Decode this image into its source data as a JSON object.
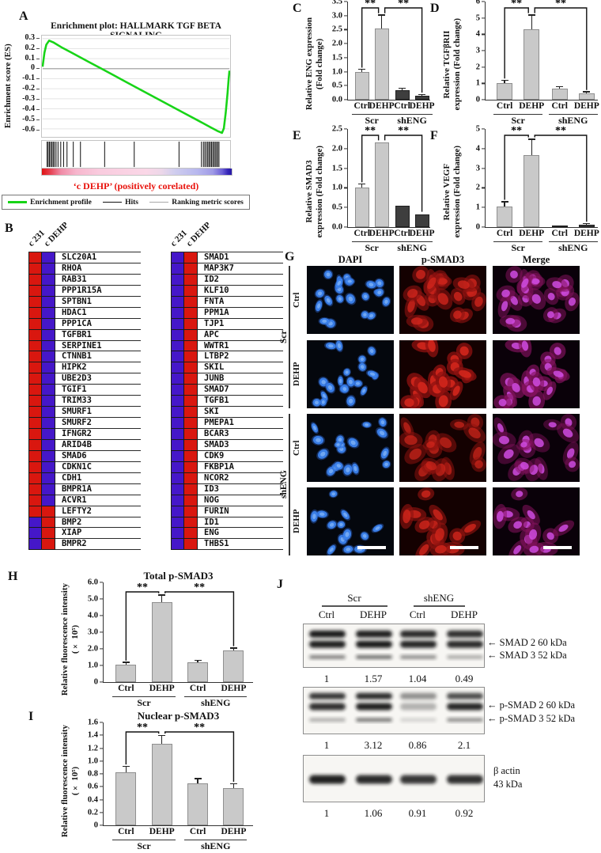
{
  "colors": {
    "bar_light": "#c9c9c9",
    "bar_light_border": "#8f8f8f",
    "bar_dark": "#3e3e3e",
    "bar_dark_border": "#1f1f1f",
    "heat_red": "#d9170f",
    "heat_blue": "#4517c9",
    "caption_red": "#e8120c",
    "curve_green": "#17d417"
  },
  "chart_data": [
    {
      "id": "A",
      "panel": "A",
      "type": "line",
      "title": "Enrichment plot: HALLMARK TGF BETA SIGNALING",
      "ylabel": "Enrichment score (ES)",
      "yticks": [
        0.3,
        0.2,
        0.1,
        0,
        -0.1,
        -0.2,
        -0.3,
        -0.4,
        -0.5,
        -0.6
      ],
      "ylim": [
        -0.68,
        0.33
      ],
      "curve": [
        [
          0,
          0.02
        ],
        [
          1,
          0.16
        ],
        [
          2,
          0.24
        ],
        [
          3.5,
          0.28
        ],
        [
          6,
          0.26
        ],
        [
          10,
          0.215
        ],
        [
          15,
          0.165
        ],
        [
          20,
          0.115
        ],
        [
          25,
          0.065
        ],
        [
          31,
          0.005
        ],
        [
          38,
          -0.065
        ],
        [
          45,
          -0.135
        ],
        [
          52,
          -0.205
        ],
        [
          60,
          -0.285
        ],
        [
          68,
          -0.365
        ],
        [
          76,
          -0.445
        ],
        [
          84,
          -0.525
        ],
        [
          90,
          -0.585
        ],
        [
          93.5,
          -0.62
        ],
        [
          96,
          -0.64
        ],
        [
          97,
          -0.595
        ],
        [
          98,
          -0.44
        ],
        [
          99,
          -0.24
        ],
        [
          99.6,
          -0.1
        ],
        [
          100,
          -0.02
        ]
      ],
      "hits_pct": [
        0.4,
        1,
        1.7,
        2.4,
        3.1,
        3.8,
        4.5,
        5.4,
        6.5,
        8,
        9.6,
        11.5,
        15,
        19,
        32.5,
        49,
        74,
        86.5,
        87.6,
        88.4,
        89.2,
        90,
        90.7,
        91.4,
        92.1,
        92.8,
        93.5,
        94.2,
        94.9,
        95.6,
        96.3
      ],
      "colorbar_stops": [
        [
          "0%",
          "#df1212"
        ],
        [
          "5%",
          "#e7485a"
        ],
        [
          "10%",
          "#f08ba6"
        ],
        [
          "18%",
          "#f7b6cd"
        ],
        [
          "30%",
          "#f9cbde"
        ],
        [
          "55%",
          "#fad7e7"
        ],
        [
          "63%",
          "#ecd7e9"
        ],
        [
          "70%",
          "#cfcdee"
        ],
        [
          "82%",
          "#b7b7ee"
        ],
        [
          "90%",
          "#9f9ae6"
        ],
        [
          "95%",
          "#6c5fd6"
        ],
        [
          "98%",
          "#3525b8"
        ],
        [
          "100%",
          "#2718a4"
        ]
      ],
      "caption": "‘c DEHP’ (positively corelated)",
      "legend": [
        [
          "Enrichment profile",
          "#17d417"
        ],
        [
          "Hits",
          "#111111"
        ],
        [
          "Ranking metric scores",
          "#a8a8a8"
        ]
      ]
    },
    {
      "id": "C",
      "panel": "C",
      "type": "bar",
      "ylabel_lines": [
        "Relative ENG expression",
        "(Fold change)"
      ],
      "ylim": [
        0,
        3.5
      ],
      "ytick_labels": [
        "3.5",
        "3.0",
        "2.5",
        "2.0",
        "1.5",
        "1.0",
        "0.5",
        "0.0"
      ],
      "categories": [
        "Ctrl",
        "DEHP",
        "Ctrl",
        "DEHP"
      ],
      "groups": [
        "Scr",
        "shENG"
      ],
      "values": [
        1.0,
        2.55,
        0.35,
        0.15
      ],
      "errors": [
        0.06,
        0.45,
        0.04,
        0.02
      ],
      "bar_colors": [
        "light",
        "light",
        "dark",
        "dark"
      ],
      "sig": [
        {
          "from": 0,
          "to": 1,
          "label": "**"
        },
        {
          "from": 1,
          "to": 3,
          "label": "**"
        }
      ]
    },
    {
      "id": "D",
      "panel": "D",
      "type": "bar",
      "ylabel_lines": [
        "Relative TGFβRII",
        "expression (Fold change)"
      ],
      "ylim": [
        0,
        6
      ],
      "ytick_labels": [
        "6",
        "5",
        "4",
        "3",
        "2",
        "1",
        "0"
      ],
      "categories": [
        "Ctrl",
        "DEHP",
        "Ctrl",
        "DEHP"
      ],
      "groups": [
        "Scr",
        "shENG"
      ],
      "values": [
        1.0,
        4.3,
        0.7,
        0.4
      ],
      "errors": [
        0.15,
        0.85,
        0.06,
        0.05
      ],
      "bar_colors": [
        "light",
        "light",
        "light",
        "light"
      ],
      "sig": [
        {
          "from": 0,
          "to": 1,
          "label": "**"
        },
        {
          "from": 1,
          "to": 3,
          "label": "**"
        }
      ]
    },
    {
      "id": "E",
      "panel": "E",
      "type": "bar",
      "ylabel_lines": [
        "Relative SMAD3",
        "expression (Fold change)"
      ],
      "ylim": [
        0,
        2.5
      ],
      "ytick_labels": [
        "2.5",
        "2.0",
        "1.5",
        "1.0",
        "0.5",
        "0.0"
      ],
      "categories": [
        "Ctrl",
        "DEHP",
        "Ctrl",
        "DEHP"
      ],
      "groups": [
        "Scr",
        "shENG"
      ],
      "values": [
        1.0,
        2.15,
        0.55,
        0.33
      ],
      "errors": [
        0.08,
        0,
        0,
        0
      ],
      "bar_colors": [
        "light",
        "light",
        "dark",
        "dark"
      ],
      "sig": [
        {
          "from": 0,
          "to": 1,
          "label": "**"
        },
        {
          "from": 1,
          "to": 3,
          "label": "**"
        }
      ]
    },
    {
      "id": "F",
      "panel": "F",
      "type": "bar",
      "ylabel_lines": [
        "Relative VEGF",
        "expression (Fold change)"
      ],
      "ylim": [
        0,
        5
      ],
      "ytick_labels": [
        "5",
        "4",
        "3",
        "2",
        "1",
        "0"
      ],
      "categories": [
        "Ctrl",
        "DEHP",
        "Ctrl",
        "DEHP"
      ],
      "groups": [
        "Scr",
        "shENG"
      ],
      "values": [
        1.05,
        3.65,
        0.04,
        0.12
      ],
      "errors": [
        0.22,
        0.8,
        0,
        0.03
      ],
      "bar_colors": [
        "light",
        "light",
        "dark",
        "dark"
      ],
      "sig": [
        {
          "from": 0,
          "to": 1,
          "label": "**"
        },
        {
          "from": 1,
          "to": 3,
          "label": "**"
        }
      ]
    },
    {
      "id": "H",
      "panel": "H",
      "type": "bar",
      "title": "Total p-SMAD3",
      "ylabel_lines": [
        "Relative fluorescence intensity",
        "(× 10⁵)"
      ],
      "ylim": [
        0,
        6
      ],
      "ytick_labels": [
        "6.0",
        "5.0",
        "4.0",
        "3.0",
        "2.0",
        "1.0",
        "0"
      ],
      "categories": [
        "Ctrl",
        "DEHP",
        "Ctrl",
        "DEHP"
      ],
      "groups": [
        "Scr",
        "shENG"
      ],
      "values": [
        1.05,
        4.8,
        1.2,
        1.9
      ],
      "errors": [
        0.1,
        0.4,
        0.08,
        0.12
      ],
      "bar_colors": [
        "light",
        "light",
        "light",
        "light"
      ],
      "sig": [
        {
          "from": 0,
          "to": 1,
          "label": "**"
        },
        {
          "from": 1,
          "to": 3,
          "label": "**"
        }
      ]
    },
    {
      "id": "I",
      "panel": "I",
      "type": "bar",
      "title": "Nuclear p-SMAD3",
      "ylabel_lines": [
        "Relative fluorescence intensity",
        "(× 10⁵)"
      ],
      "ylim": [
        0,
        1.6
      ],
      "ytick_labels": [
        "1.6",
        "1.4",
        "1.2",
        "1.0",
        "0.8",
        "0.6",
        "0.4",
        "0.2",
        "0"
      ],
      "categories": [
        "Ctrl",
        "DEHP",
        "Ctrl",
        "DEHP"
      ],
      "groups": [
        "Scr",
        "shENG"
      ],
      "values": [
        0.82,
        1.27,
        0.65,
        0.58
      ],
      "errors": [
        0.09,
        0.12,
        0.07,
        0.06
      ],
      "bar_colors": [
        "light",
        "light",
        "light",
        "light"
      ],
      "sig": [
        {
          "from": 0,
          "to": 1,
          "label": "**"
        },
        {
          "from": 1,
          "to": 3,
          "label": "**"
        }
      ]
    }
  ],
  "panel_b": {
    "label": "B",
    "col_headers": [
      "c 231",
      "c DEHP"
    ],
    "left": [
      {
        "gene": "SLC20A1",
        "c": [
          "r",
          "b"
        ]
      },
      {
        "gene": "RHOA",
        "c": [
          "r",
          "b"
        ]
      },
      {
        "gene": "RAB31",
        "c": [
          "r",
          "b"
        ]
      },
      {
        "gene": "PPP1R15A",
        "c": [
          "r",
          "b"
        ]
      },
      {
        "gene": "SPTBN1",
        "c": [
          "r",
          "b"
        ]
      },
      {
        "gene": "HDAC1",
        "c": [
          "r",
          "b"
        ]
      },
      {
        "gene": "PPP1CA",
        "c": [
          "r",
          "b"
        ]
      },
      {
        "gene": "TGFBR1",
        "c": [
          "r",
          "b"
        ]
      },
      {
        "gene": "SERPINE1",
        "c": [
          "r",
          "b"
        ]
      },
      {
        "gene": "CTNNB1",
        "c": [
          "r",
          "b"
        ]
      },
      {
        "gene": "HIPK2",
        "c": [
          "r",
          "b"
        ]
      },
      {
        "gene": "UBE2D3",
        "c": [
          "r",
          "b"
        ]
      },
      {
        "gene": "TGIF1",
        "c": [
          "r",
          "b"
        ]
      },
      {
        "gene": "TRIM33",
        "c": [
          "r",
          "b"
        ]
      },
      {
        "gene": "SMURF1",
        "c": [
          "r",
          "b"
        ]
      },
      {
        "gene": "SMURF2",
        "c": [
          "r",
          "b"
        ]
      },
      {
        "gene": "IFNGR2",
        "c": [
          "r",
          "b"
        ]
      },
      {
        "gene": "ARID4B",
        "c": [
          "r",
          "b"
        ]
      },
      {
        "gene": "SMAD6",
        "c": [
          "r",
          "b"
        ]
      },
      {
        "gene": "CDKN1C",
        "c": [
          "r",
          "b"
        ]
      },
      {
        "gene": "CDH1",
        "c": [
          "r",
          "b"
        ]
      },
      {
        "gene": "BMPR1A",
        "c": [
          "r",
          "b"
        ]
      },
      {
        "gene": "ACVR1",
        "c": [
          "r",
          "b"
        ]
      },
      {
        "gene": "LEFTY2",
        "c": [
          "r",
          "r"
        ]
      },
      {
        "gene": "BMP2",
        "c": [
          "b",
          "r"
        ]
      },
      {
        "gene": "XIAP",
        "c": [
          "b",
          "r"
        ]
      },
      {
        "gene": "BMPR2",
        "c": [
          "b",
          "r"
        ]
      }
    ],
    "right": [
      {
        "gene": "SMAD1",
        "c": [
          "b",
          "r"
        ]
      },
      {
        "gene": "MAP3K7",
        "c": [
          "b",
          "r"
        ]
      },
      {
        "gene": "ID2",
        "c": [
          "b",
          "r"
        ]
      },
      {
        "gene": "KLF10",
        "c": [
          "b",
          "r"
        ]
      },
      {
        "gene": "FNTA",
        "c": [
          "b",
          "r"
        ]
      },
      {
        "gene": "PPM1A",
        "c": [
          "b",
          "r"
        ]
      },
      {
        "gene": "TJP1",
        "c": [
          "b",
          "r"
        ]
      },
      {
        "gene": "APC",
        "c": [
          "b",
          "r"
        ]
      },
      {
        "gene": "WWTR1",
        "c": [
          "b",
          "r"
        ]
      },
      {
        "gene": "LTBP2",
        "c": [
          "b",
          "r"
        ]
      },
      {
        "gene": "SKIL",
        "c": [
          "b",
          "r"
        ]
      },
      {
        "gene": "JUNB",
        "c": [
          "b",
          "r"
        ]
      },
      {
        "gene": "SMAD7",
        "c": [
          "b",
          "r"
        ]
      },
      {
        "gene": "TGFB1",
        "c": [
          "b",
          "r"
        ]
      },
      {
        "gene": "SKI",
        "c": [
          "b",
          "r"
        ]
      },
      {
        "gene": "PMEPA1",
        "c": [
          "b",
          "r"
        ]
      },
      {
        "gene": "BCAR3",
        "c": [
          "b",
          "r"
        ]
      },
      {
        "gene": "SMAD3",
        "c": [
          "b",
          "r"
        ]
      },
      {
        "gene": "CDK9",
        "c": [
          "b",
          "r"
        ]
      },
      {
        "gene": "FKBP1A",
        "c": [
          "b",
          "r"
        ]
      },
      {
        "gene": "NCOR2",
        "c": [
          "b",
          "r"
        ]
      },
      {
        "gene": "ID3",
        "c": [
          "b",
          "r"
        ]
      },
      {
        "gene": "NOG",
        "c": [
          "b",
          "r"
        ]
      },
      {
        "gene": "FURIN",
        "c": [
          "b",
          "r"
        ]
      },
      {
        "gene": "ID1",
        "c": [
          "b",
          "r"
        ]
      },
      {
        "gene": "ENG",
        "c": [
          "b",
          "r"
        ]
      },
      {
        "gene": "THBS1",
        "c": [
          "b",
          "r"
        ]
      }
    ]
  },
  "panel_g": {
    "label": "G",
    "col_headers": [
      "DAPI",
      "p-SMAD3",
      "Merge"
    ],
    "groups": [
      {
        "label": "Scr",
        "rows": [
          {
            "label": "Ctrl",
            "seed": 7,
            "intensity": 0.7,
            "cells": 22
          },
          {
            "label": "DEHP",
            "seed": 19,
            "intensity": 1.0,
            "cells": 20
          }
        ]
      },
      {
        "label": "shENG",
        "rows": [
          {
            "label": "Ctrl",
            "seed": 29,
            "intensity": 0.5,
            "cells": 18
          },
          {
            "label": "DEHP",
            "seed": 41,
            "intensity": 0.75,
            "cells": 13
          }
        ]
      }
    ]
  },
  "panel_j": {
    "label": "J",
    "group_headers": [
      "Scr",
      "shENG"
    ],
    "lane_labels": [
      "Ctrl",
      "DEHP",
      "Ctrl",
      "DEHP"
    ],
    "blots": [
      {
        "bands": [
          {
            "y": 0.22,
            "h": 9,
            "opacity": [
              0.97,
              0.95,
              0.9,
              0.88
            ]
          },
          {
            "y": 0.45,
            "h": 9,
            "opacity": [
              0.95,
              0.97,
              0.92,
              0.9
            ],
            "label": "SMAD 2 60 kDa"
          },
          {
            "y": 0.74,
            "h": 5,
            "opacity": [
              0.5,
              0.58,
              0.45,
              0.32
            ],
            "label": "SMAD 3 52 kDa"
          }
        ],
        "values": [
          "1",
          "1.57",
          "1.04",
          "0.49"
        ]
      },
      {
        "bands": [
          {
            "y": 0.18,
            "h": 8,
            "opacity": [
              0.85,
              0.9,
              0.45,
              0.75
            ]
          },
          {
            "y": 0.4,
            "h": 9,
            "opacity": [
              0.88,
              0.95,
              0.3,
              0.92
            ],
            "label": "p-SMAD 2 60 kDa"
          },
          {
            "y": 0.68,
            "h": 5,
            "opacity": [
              0.3,
              0.55,
              0.15,
              0.45
            ],
            "label": "p-SMAD 3 52 kDa"
          }
        ],
        "values": [
          "1",
          "3.12",
          "0.86",
          "2.1"
        ]
      },
      {
        "bands": [
          {
            "y": 0.5,
            "h": 11,
            "opacity": [
              0.95,
              0.9,
              0.85,
              0.88
            ]
          }
        ],
        "side_label_lines": [
          "β actin",
          "43 kDa"
        ],
        "values": [
          "1",
          "1.06",
          "0.91",
          "0.92"
        ]
      }
    ]
  }
}
